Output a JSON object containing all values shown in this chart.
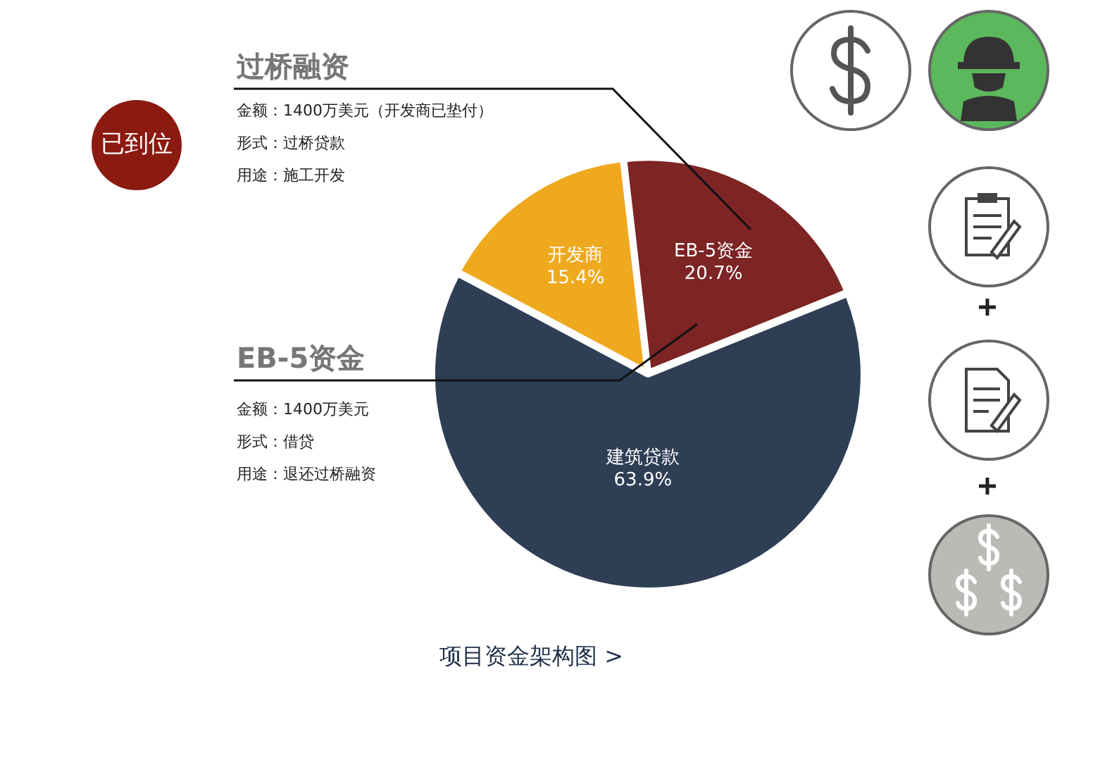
{
  "chart_data": {
    "type": "pie",
    "categories": [
      "开发商",
      "EB-5资金",
      "建筑贷款"
    ],
    "values": [
      15.4,
      20.7,
      63.9
    ],
    "value_labels": [
      "15.4%",
      "20.7%",
      "63.9%"
    ],
    "colors": [
      "#efa91f",
      "#7d2424",
      "#2e3e55"
    ],
    "legend": false,
    "annotations": [
      "已到位",
      "过桥融资",
      "金额：1400万美元（开发商已垫付）",
      "形式：过桥贷款",
      "用途：施工开发",
      "EB-5资金",
      "金额：1400万美元",
      "形式：借贷",
      "用途：退还过桥融资",
      "项目资金架构图  >"
    ]
  }
}
